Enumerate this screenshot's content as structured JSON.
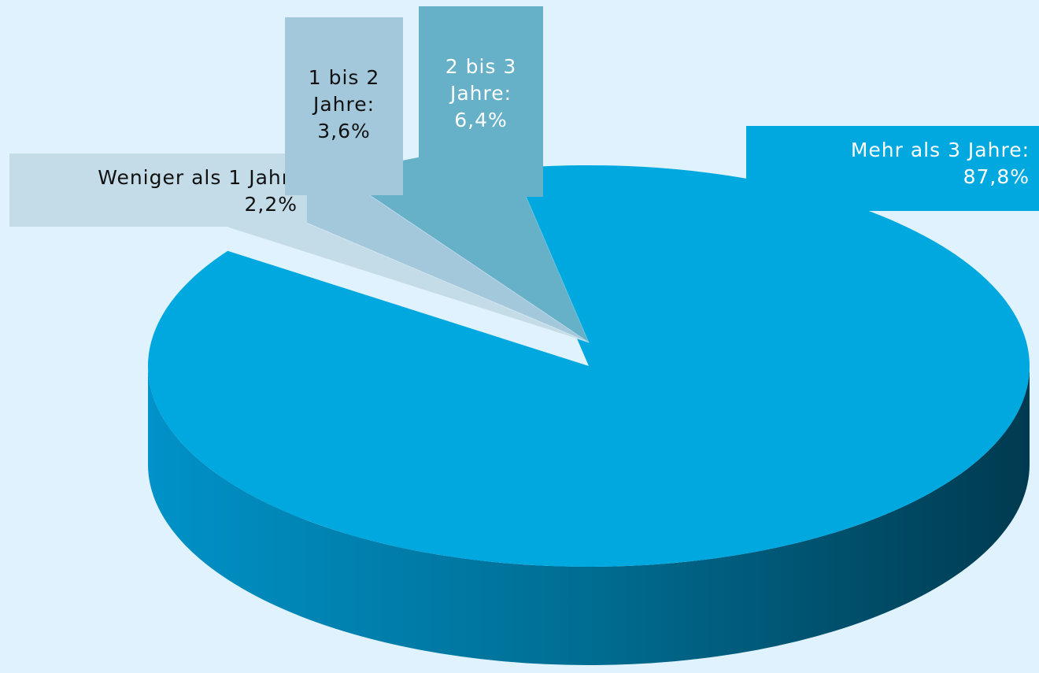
{
  "chart_data": {
    "type": "pie3d",
    "categories": [
      "Weniger als 1 Jahr:",
      "1 bis 2 Jahre:",
      "2 bis 3 Jahre:",
      "Mehr als 3 Jahre:"
    ],
    "values": [
      2.2,
      3.6,
      6.4,
      87.8
    ],
    "value_labels": [
      "2,2%",
      "3,6%",
      "6,4%",
      "87,8%"
    ],
    "colors": [
      "#c4dce8",
      "#a3c8dc",
      "#66b0c8",
      "#00a8e0"
    ],
    "label_text_colors": [
      "#111111",
      "#111111",
      "#ffffff",
      "#ffffff"
    ]
  }
}
